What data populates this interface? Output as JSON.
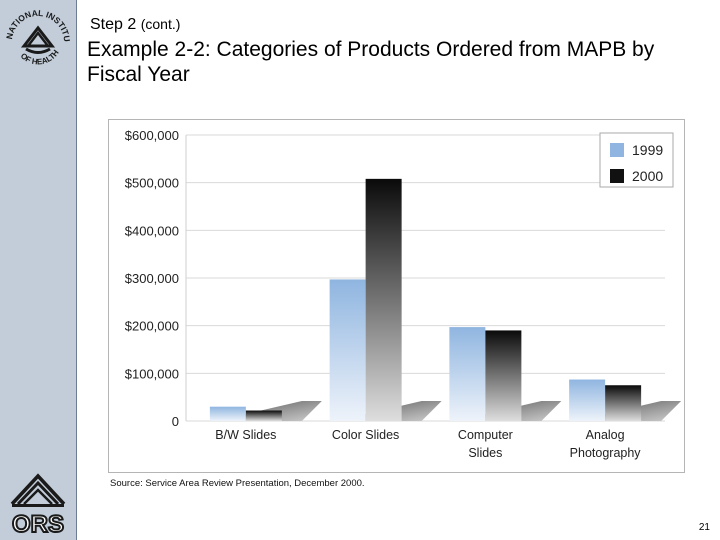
{
  "slide": {
    "step": "Step 2",
    "step_suffix": "(cont.)",
    "title": "Example 2-2: Categories of Products Ordered from MAPB by Fiscal Year",
    "source": "Source:  Service Area Review Presentation, December 2000.",
    "page_number": "21"
  },
  "logos": {
    "seal_text": "NATIONAL INSTITUTES OF HEALTH",
    "ors_text": "ORS"
  },
  "colors": {
    "series_1999": "#8fb5e0",
    "series_2000": "#111111",
    "sidebar": "#c2cdd9"
  },
  "chart_data": {
    "type": "bar",
    "title": "",
    "xlabel": "",
    "ylabel": "",
    "categories": [
      [
        "B/W Slides"
      ],
      [
        "Color Slides"
      ],
      [
        "Computer",
        "Slides"
      ],
      [
        "Analog",
        "Photography"
      ]
    ],
    "series": [
      {
        "name": "1999",
        "values": [
          30000,
          297000,
          197000,
          87000
        ]
      },
      {
        "name": "2000",
        "values": [
          22000,
          508000,
          190000,
          75000
        ]
      }
    ],
    "ylim": [
      0,
      600000
    ],
    "yticks": [
      {
        "value": 600000,
        "label": "$600,000"
      },
      {
        "value": 500000,
        "label": "$500,000"
      },
      {
        "value": 400000,
        "label": "$400,000"
      },
      {
        "value": 300000,
        "label": "$300,000"
      },
      {
        "value": 200000,
        "label": "$200,000"
      },
      {
        "value": 100000,
        "label": "$100,000"
      },
      {
        "value": 0,
        "label": "0"
      }
    ],
    "grid": true,
    "legend": "top-right"
  }
}
